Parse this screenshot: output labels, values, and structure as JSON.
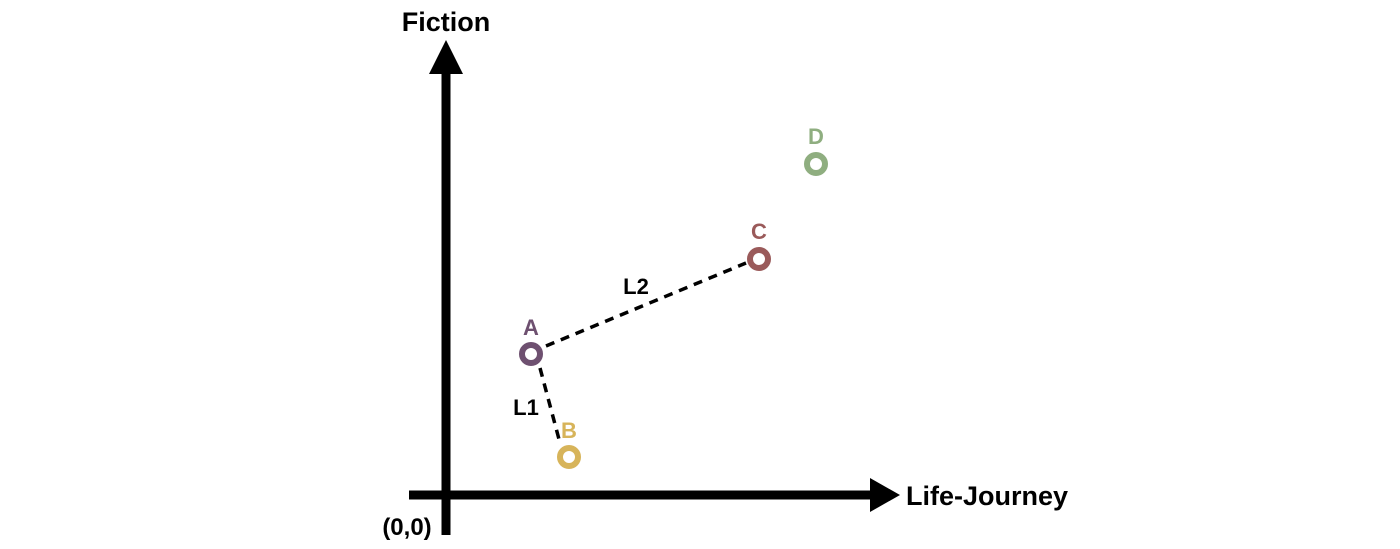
{
  "axes": {
    "y_label": "Fiction",
    "x_label": "Life-Journey",
    "origin_label": "(0,0)"
  },
  "points": [
    {
      "id": "A",
      "label": "A",
      "color": "#6e5070"
    },
    {
      "id": "B",
      "label": "B",
      "color": "#d7b45a"
    },
    {
      "id": "C",
      "label": "C",
      "color": "#9a5a5a"
    },
    {
      "id": "D",
      "label": "D",
      "color": "#8fae80"
    }
  ],
  "distances": [
    {
      "id": "L1",
      "label": "L1",
      "from": "A",
      "to": "B"
    },
    {
      "id": "L2",
      "label": "L2",
      "from": "A",
      "to": "C"
    }
  ]
}
